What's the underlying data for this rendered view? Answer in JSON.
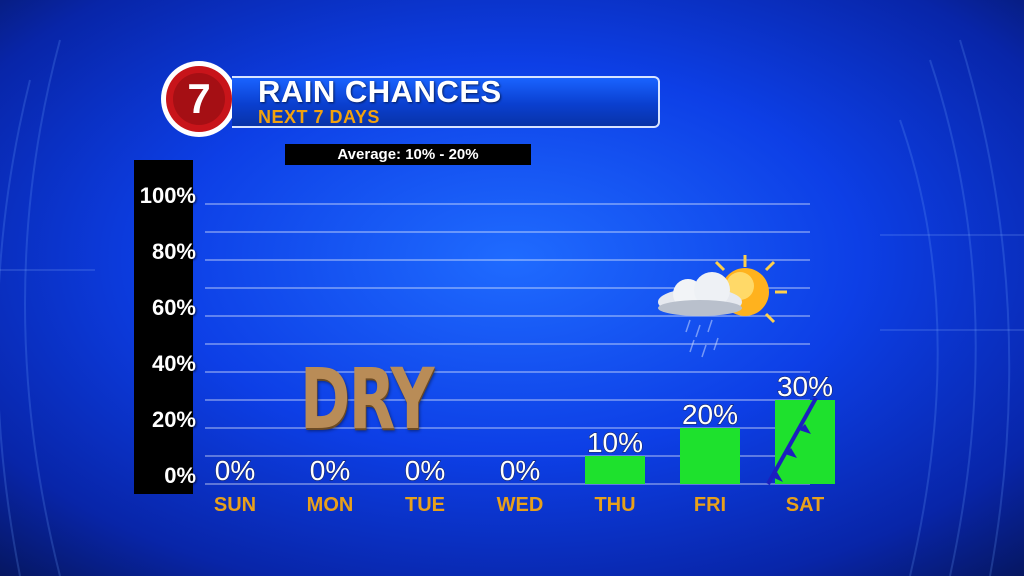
{
  "header": {
    "logo_text": "7",
    "title": "RAIN CHANCES",
    "subtitle": "NEXT 7 DAYS",
    "average": "Average: 10% - 20%"
  },
  "annotation": "DRY",
  "colors": {
    "bar": "#1ee12d",
    "day_label": "#e8a01a",
    "logo_red": "#c8141a",
    "banner": "#0a46e0",
    "background": "#0d3ce0"
  },
  "icons": {
    "weather": "partly-cloudy-rain-icon",
    "front": "cold-front-icon"
  },
  "chart_data": {
    "type": "bar",
    "categories": [
      "SUN",
      "MON",
      "TUE",
      "WED",
      "THU",
      "FRI",
      "SAT"
    ],
    "values": [
      0,
      0,
      0,
      0,
      10,
      20,
      30
    ],
    "value_labels": [
      "0%",
      "0%",
      "0%",
      "0%",
      "10%",
      "20%",
      "30%"
    ],
    "yticks": [
      "100%",
      "80%",
      "60%",
      "40%",
      "20%",
      "0%"
    ],
    "ylim": [
      0,
      100
    ],
    "grid": true
  }
}
